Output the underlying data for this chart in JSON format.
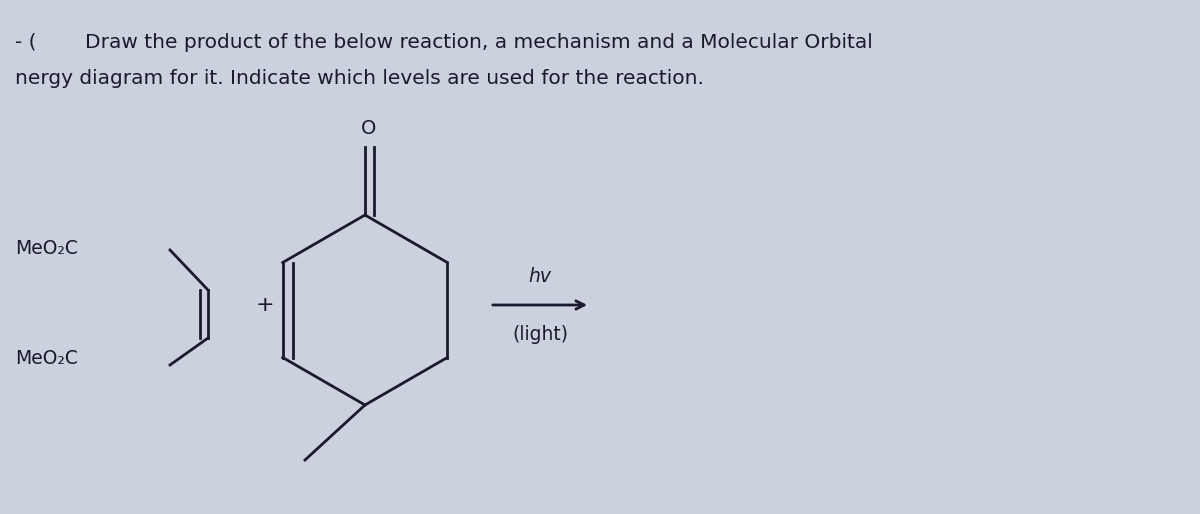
{
  "bg_color": "#ccd1de",
  "text_color": "#1a1a2e",
  "title_line1": "Draw the product of the below reaction, a mechanism and a Molecular Orbital",
  "title_line2": "nergy diagram for it. Indicate which levels are used for the reaction.",
  "prefix_text": "- (",
  "meo2c_top": "MeO₂C",
  "meo2c_bot": "MeO₂C",
  "hv_label": "hv",
  "light_label": "(light)",
  "plus_label": "+",
  "title_fontsize": 14.5,
  "mol_fontsize": 13.5,
  "arrow_fontsize": 13.5
}
